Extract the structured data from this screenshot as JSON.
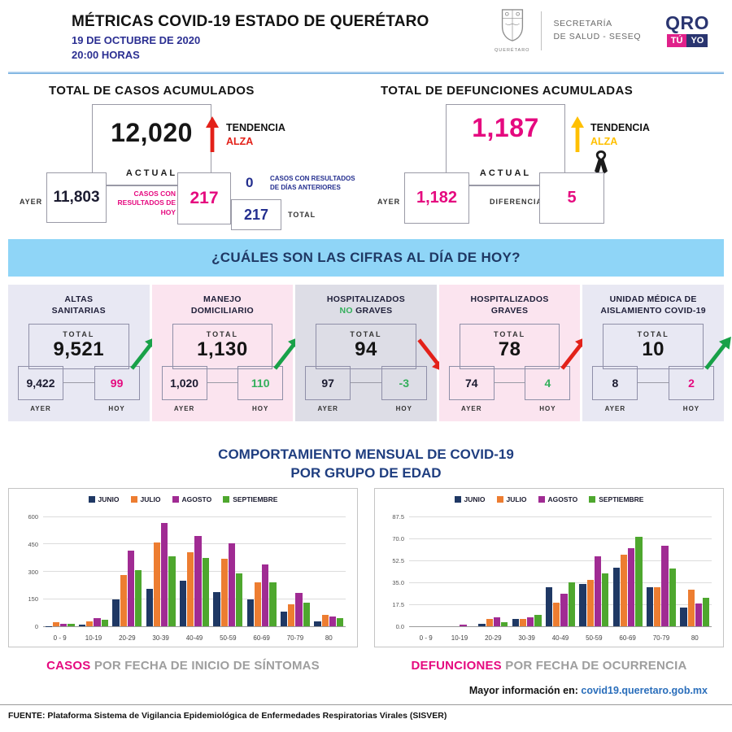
{
  "header": {
    "title": "MÉTRICAS COVID-19 ESTADO DE QUERÉTARO",
    "date": "19 DE OCTUBRE DE 2020",
    "time": "20:00 HORAS",
    "shield_caption": "QUERÉTARO",
    "secretaria_line1": "SECRETARÍA",
    "secretaria_line2": "DE SALUD - SESEQ",
    "brand_qro": "QRO",
    "brand_tu": "TÚ",
    "brand_yo": "YO"
  },
  "cases": {
    "title": "TOTAL DE CASOS ACUMULADOS",
    "actual": "12,020",
    "actual_label": "ACTUAL",
    "trend_label": "TENDENCIA",
    "trend_value": "ALZA",
    "ayer_label": "AYER",
    "ayer": "11,803",
    "today_label": "CASOS CON RESULTADOS DE HOY",
    "today": "217",
    "previous": "0",
    "previous_label": "CASOS CON RESULTADOS DE DÍAS ANTERIORES",
    "total": "217",
    "total_label": "TOTAL"
  },
  "deaths": {
    "title": "TOTAL DE DEFUNCIONES ACUMULADAS",
    "actual": "1,187",
    "actual_label": "ACTUAL",
    "trend_label": "TENDENCIA",
    "trend_value": "ALZA",
    "ayer_label": "AYER",
    "ayer": "1,182",
    "diff_label": "DIFERENCIA",
    "diff": "5"
  },
  "banner": {
    "question": "¿CUÁLES SON LAS CIFRAS AL DÍA DE HOY?"
  },
  "cards": [
    {
      "title_lines": [
        "ALTAS",
        "SANITARIAS"
      ],
      "accent_word": "",
      "total_label": "TOTAL",
      "total": "9,521",
      "ayer": "9,422",
      "hoy": "99",
      "ayer_label": "AYER",
      "hoy_label": "HOY",
      "hoy_color": "#E5097F",
      "bg": "#E8E8F3",
      "arrow_dir": "up",
      "arrow_color": "#18A148"
    },
    {
      "title_lines": [
        "MANEJO",
        "DOMICILIARIO"
      ],
      "accent_word": "",
      "total_label": "TOTAL",
      "total": "1,130",
      "ayer": "1,020",
      "hoy": "110",
      "ayer_label": "AYER",
      "hoy_label": "HOY",
      "hoy_color": "#33AF5B",
      "bg": "#FBE4EF",
      "arrow_dir": "up",
      "arrow_color": "#18A148"
    },
    {
      "title_lines": [
        "HOSPITALIZADOS",
        "NO GRAVES"
      ],
      "accent_word": "NO",
      "total_label": "TOTAL",
      "total": "94",
      "ayer": "97",
      "hoy": "-3",
      "ayer_label": "AYER",
      "hoy_label": "HOY",
      "hoy_color": "#33AF5B",
      "bg": "#DDDDE6",
      "arrow_dir": "down",
      "arrow_color": "#E32119"
    },
    {
      "title_lines": [
        "HOSPITALIZADOS",
        "GRAVES"
      ],
      "accent_word": "",
      "total_label": "TOTAL",
      "total": "78",
      "ayer": "74",
      "hoy": "4",
      "ayer_label": "AYER",
      "hoy_label": "HOY",
      "hoy_color": "#33AF5B",
      "bg": "#FBE4EF",
      "arrow_dir": "up",
      "arrow_color": "#E32119"
    },
    {
      "title_lines": [
        "UNIDAD MÉDICA DE",
        "AISLAMIENTO COVID-19"
      ],
      "accent_word": "",
      "total_label": "TOTAL",
      "total": "10",
      "ayer": "8",
      "hoy": "2",
      "ayer_label": "AYER",
      "hoy_label": "HOY",
      "hoy_color": "#E5097F",
      "bg": "#E8E8F3",
      "arrow_dir": "up",
      "arrow_color": "#18A148"
    }
  ],
  "charts_section": {
    "title_line1": "COMPORTAMIENTO MENSUAL DE COVID-19",
    "title_line2": "POR GRUPO DE EDAD"
  },
  "chart_data": [
    {
      "type": "bar",
      "title": "CASOS POR FECHA DE INICIO DE SÍNTOMAS",
      "title_accent": "CASOS",
      "categories": [
        "0 - 9",
        "10-19",
        "20-29",
        "30-39",
        "40-49",
        "50-59",
        "60-69",
        "70-79",
        "80"
      ],
      "series": [
        {
          "name": "JUNIO",
          "color": "#1F3864",
          "values": [
            2,
            10,
            147,
            203,
            250,
            188,
            145,
            78,
            28
          ]
        },
        {
          "name": "JULIO",
          "color": "#ED7D31",
          "values": [
            22,
            25,
            280,
            460,
            405,
            368,
            240,
            120,
            62
          ]
        },
        {
          "name": "AGOSTO",
          "color": "#A02B93",
          "values": [
            15,
            43,
            415,
            565,
            495,
            452,
            340,
            182,
            55
          ]
        },
        {
          "name": "SEPTIEMBRE",
          "color": "#4EA72E",
          "values": [
            12,
            36,
            305,
            382,
            372,
            290,
            238,
            130,
            45
          ]
        }
      ],
      "ylim": [
        0,
        600
      ],
      "yticks": [
        0,
        150,
        300,
        450,
        600
      ],
      "ytick_labels": [
        "0",
        "150",
        "300",
        "450",
        "600"
      ],
      "grid": true,
      "legend_position": "top"
    },
    {
      "type": "bar",
      "title": "DEFUNCIONES POR FECHA DE OCURRENCIA",
      "title_accent": "DEFUNCIONES",
      "categories": [
        "0 - 9",
        "10-19",
        "20-29",
        "30-39",
        "40-49",
        "50-59",
        "60-69",
        "70-79",
        "80"
      ],
      "series": [
        {
          "name": "JUNIO",
          "color": "#1F3864",
          "values": [
            0,
            0,
            2,
            6,
            31,
            34,
            47,
            31,
            15
          ]
        },
        {
          "name": "JULIO",
          "color": "#ED7D31",
          "values": [
            0,
            0,
            6,
            6,
            19,
            37,
            57,
            31,
            29
          ]
        },
        {
          "name": "AGOSTO",
          "color": "#A02B93",
          "values": [
            0,
            1,
            7,
            7,
            26,
            56,
            62,
            64,
            18
          ]
        },
        {
          "name": "SEPTIEMBRE",
          "color": "#4EA72E",
          "values": [
            0,
            0,
            3,
            9,
            35,
            42,
            71,
            46,
            23
          ]
        }
      ],
      "ylim": [
        0,
        87.5
      ],
      "yticks": [
        0,
        17.5,
        35,
        52.5,
        70,
        87.5
      ],
      "ytick_labels": [
        "0.0",
        "17.5",
        "35.0",
        "52.5",
        "70.0",
        "87.5"
      ],
      "grid": true,
      "legend_position": "top"
    }
  ],
  "footer": {
    "more_info_label": "Mayor información en:",
    "more_info_link": "covid19.queretaro.gob.mx",
    "fuente": "FUENTE: Plataforma Sistema  de Vigilancia Epidemiológica de Enfermedades Respiratorias Virales (SISVER)"
  },
  "colors": {
    "pink": "#E5097F",
    "navy": "#242F8F",
    "dark_navy_num": "#1b1b30",
    "red": "#E32119",
    "gold": "#FFC000",
    "green_arrow": "#18A148",
    "green_value": "#33AF5B",
    "banner_bg": "#8FD5F7",
    "banner_text": "#1F3864",
    "section_title_blue": "#1F3E80",
    "link_blue": "#2A6EBB"
  }
}
